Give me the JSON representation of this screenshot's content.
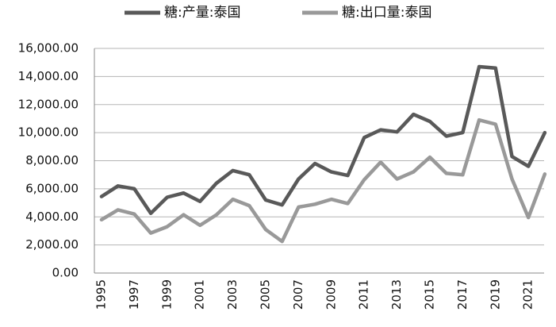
{
  "chart_data": {
    "type": "line",
    "title": "",
    "xlabel": "",
    "ylabel": "",
    "ylim": [
      0,
      16000
    ],
    "y_ticks": [
      "0.00",
      "2,000.00",
      "4,000.00",
      "6,000.00",
      "8,000.00",
      "10,000.00",
      "12,000.00",
      "14,000.00",
      "16,000.00"
    ],
    "y_tick_values": [
      0,
      2000,
      4000,
      6000,
      8000,
      10000,
      12000,
      14000,
      16000
    ],
    "x": [
      1995,
      1996,
      1997,
      1998,
      1999,
      2000,
      2001,
      2002,
      2003,
      2004,
      2005,
      2006,
      2007,
      2008,
      2009,
      2010,
      2011,
      2012,
      2013,
      2014,
      2015,
      2016,
      2017,
      2018,
      2019,
      2020,
      2021,
      2022
    ],
    "x_tick_labels": [
      "1995",
      "1997",
      "1999",
      "2001",
      "2003",
      "2005",
      "2007",
      "2009",
      "2011",
      "2013",
      "2015",
      "2017",
      "2019",
      "2021"
    ],
    "grid": "horizontal",
    "legend_position": "top",
    "series": [
      {
        "name": "糖:产量:泰国",
        "color": "#595959",
        "values": [
          5450,
          6200,
          6000,
          4250,
          5400,
          5700,
          5100,
          6400,
          7300,
          7000,
          5200,
          4850,
          6700,
          7800,
          7200,
          6950,
          9650,
          10200,
          10050,
          11300,
          10800,
          9750,
          10000,
          14700,
          14600,
          8300,
          7600,
          10000
        ]
      },
      {
        "name": "糖:出口量:泰国",
        "color": "#999999",
        "values": [
          3800,
          4500,
          4200,
          2850,
          3300,
          4150,
          3400,
          4150,
          5250,
          4800,
          3100,
          2250,
          4700,
          4900,
          5250,
          4950,
          6650,
          7900,
          6700,
          7200,
          8250,
          7100,
          7000,
          10900,
          10600,
          6700,
          3950,
          7050
        ]
      }
    ]
  }
}
